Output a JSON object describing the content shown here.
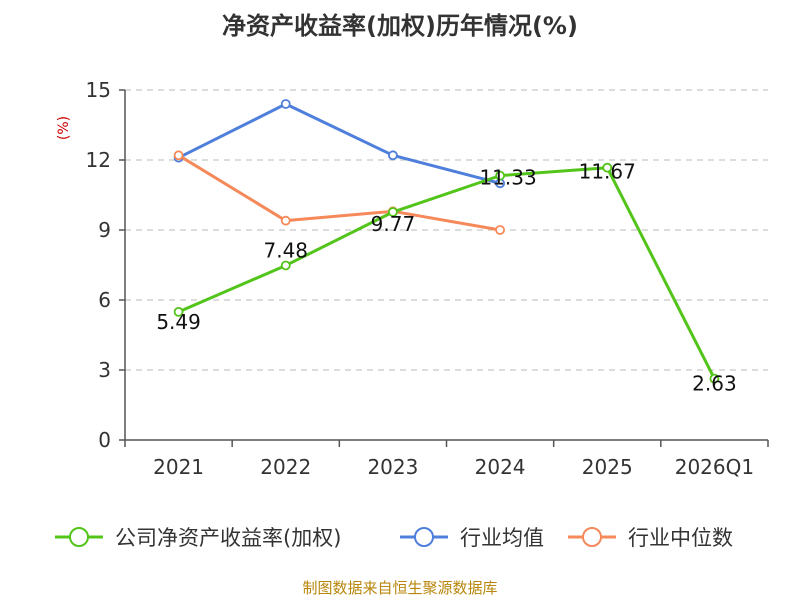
{
  "chart_data": {
    "type": "line",
    "title": "净资产收益率(加权)历年情况(%)",
    "ylabel": "(%)",
    "xlabel": "",
    "categories": [
      "2021",
      "2022",
      "2023",
      "2024",
      "2025",
      "2026Q1"
    ],
    "ylim": [
      0,
      15
    ],
    "yticks": [
      0,
      3,
      6,
      9,
      12,
      15
    ],
    "grid": true,
    "legend_position": "bottom",
    "series": [
      {
        "name": "公司净资产收益率(加权)",
        "color": "#52c41a",
        "values": [
          5.49,
          7.48,
          9.77,
          11.33,
          11.67,
          2.63
        ],
        "labels": [
          "5.49",
          "7.48",
          "9.77",
          "11.33",
          "11.67",
          "2.63"
        ]
      },
      {
        "name": "行业均值",
        "color": "#4f7fdc",
        "values": [
          12.1,
          14.4,
          12.2,
          11.0,
          null,
          null
        ]
      },
      {
        "name": "行业中位数",
        "color": "#f5895a",
        "values": [
          12.2,
          9.4,
          9.8,
          9.0,
          null,
          null
        ]
      }
    ]
  },
  "source": "制图数据来自恒生聚源数据库"
}
